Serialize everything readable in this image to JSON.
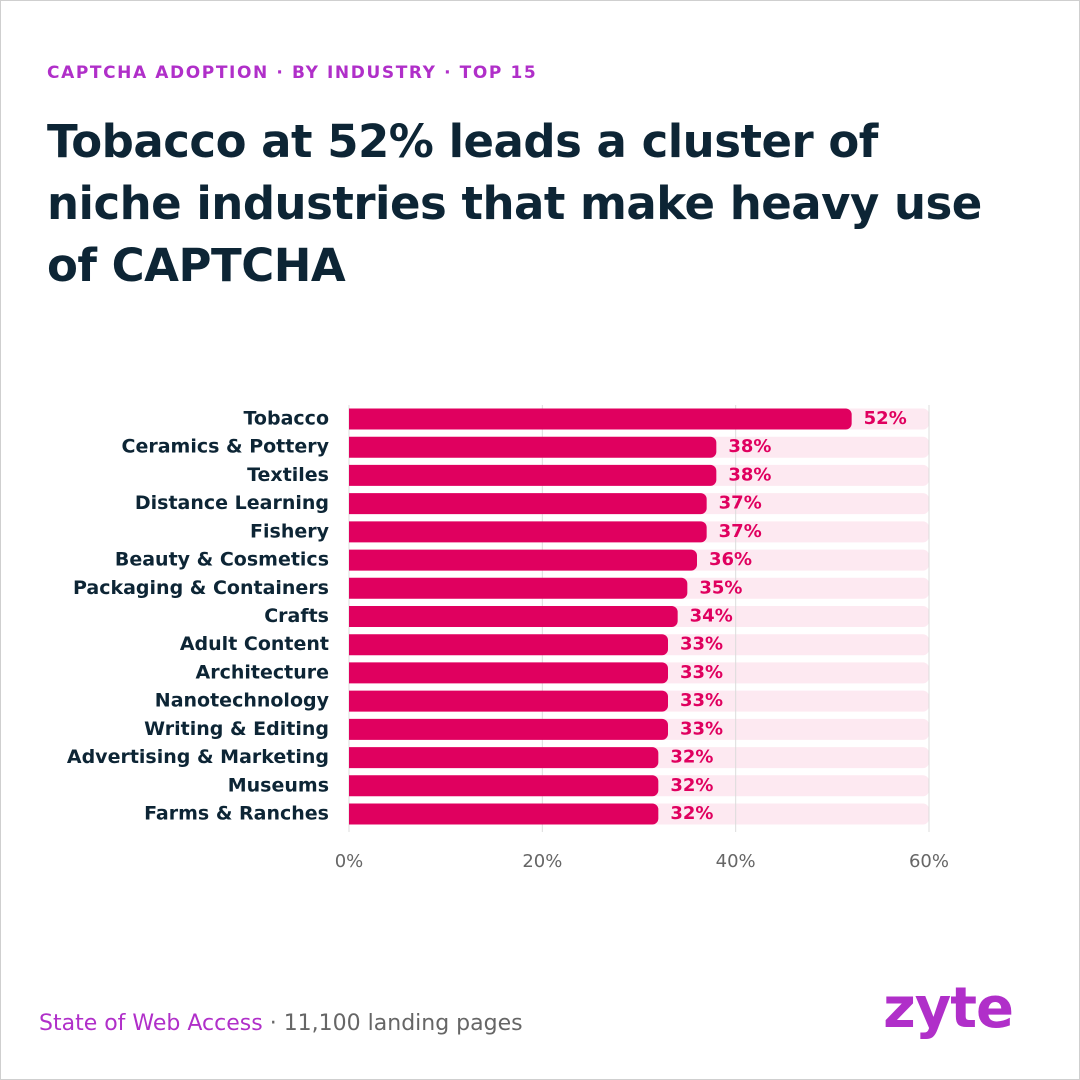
{
  "chart_data": {
    "type": "bar",
    "orientation": "horizontal",
    "subtitle": "CAPTCHA ADOPTION · BY INDUSTRY · TOP 15",
    "title": "Tobacco at 52% leads a cluster of niche industries that make heavy use of CAPTCHA",
    "categories": [
      "Tobacco",
      "Ceramics & Pottery",
      "Textiles",
      "Distance Learning",
      "Fishery",
      "Beauty & Cosmetics",
      "Packaging & Containers",
      "Crafts",
      "Adult Content",
      "Architecture",
      "Nanotechnology",
      "Writing & Editing",
      "Advertising & Marketing",
      "Museums",
      "Farms & Ranches"
    ],
    "values": [
      52,
      38,
      38,
      37,
      37,
      36,
      35,
      34,
      33,
      33,
      33,
      33,
      32,
      32,
      32
    ],
    "value_labels": [
      "52%",
      "38%",
      "38%",
      "37%",
      "37%",
      "36%",
      "35%",
      "34%",
      "33%",
      "33%",
      "33%",
      "33%",
      "32%",
      "32%",
      "32%"
    ],
    "color": "#e0005f",
    "track_color": "#fde9f1",
    "xlim": [
      0,
      60
    ],
    "xticks": [
      {
        "value": 0,
        "label": "0%"
      },
      {
        "value": 20,
        "label": "20%"
      },
      {
        "value": 40,
        "label": "40%"
      },
      {
        "value": 60,
        "label": "60%"
      }
    ],
    "grid": true
  },
  "footer": {
    "source": "State of Web Access",
    "note": "· 11,100 landing pages"
  },
  "logo": "zyte"
}
